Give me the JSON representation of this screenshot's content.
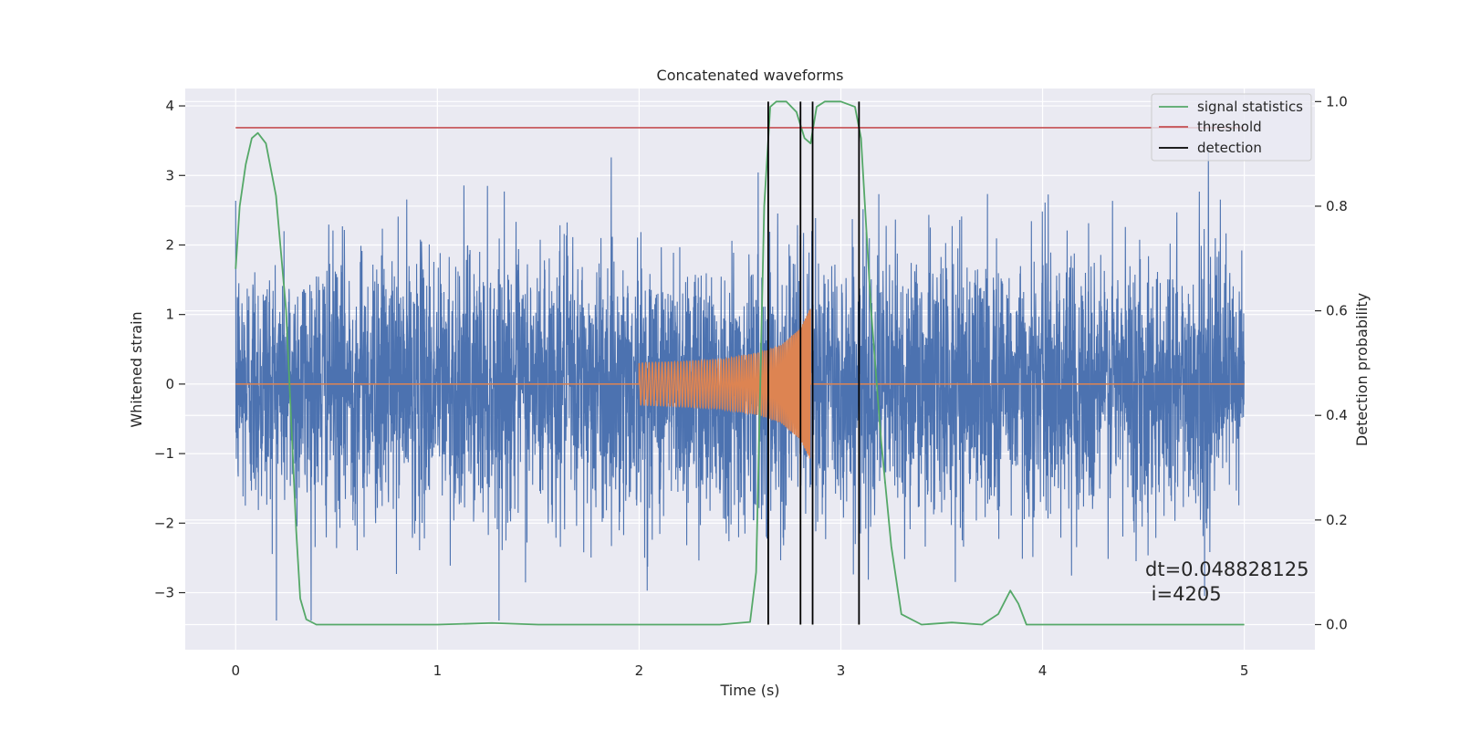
{
  "chart_data": {
    "type": "line",
    "title": "Concatenated waveforms",
    "xlabel": "Time (s)",
    "ylabel": "Whitened strain",
    "y2label": "Detection probability",
    "xlim": [
      -0.25,
      5.35
    ],
    "ylim": [
      -3.82,
      4.25
    ],
    "y2lim": [
      -0.048,
      1.025
    ],
    "x_ticks": [
      0,
      1,
      2,
      3,
      4,
      5
    ],
    "y_ticks": [
      -3,
      -2,
      -1,
      0,
      1,
      2,
      3,
      4
    ],
    "y2_ticks": [
      0.0,
      0.2,
      0.4,
      0.6,
      0.8,
      1.0
    ],
    "y2_tick_labels": [
      "0.0",
      "0.2",
      "0.4",
      "0.6",
      "0.8",
      "1.0"
    ],
    "grid": true,
    "legend_position": "top-right",
    "annotation": [
      "dt=0.048828125",
      " i=4205"
    ],
    "series": [
      {
        "name": "",
        "axis": "left",
        "color": "#4c72b0",
        "description": "whitened strain noise, dense random samples between about -3.4 and 3.8 over 0-5 s",
        "x_range": [
          0,
          5
        ],
        "envelope": [
          3.8,
          -3.4
        ]
      },
      {
        "name": "",
        "axis": "left",
        "color": "#dd8452",
        "description": "injected chirp waveform from 2.0 s to 2.86 s, amplitude growing from about 0.3 to 1.1",
        "x": [
          2.0,
          2.2,
          2.4,
          2.6,
          2.7,
          2.8,
          2.85
        ],
        "amplitude": [
          0.3,
          0.32,
          0.35,
          0.45,
          0.55,
          0.8,
          1.1
        ]
      },
      {
        "name": "signal statistics",
        "axis": "right",
        "color": "#55a868",
        "x": [
          0,
          0.02,
          0.05,
          0.08,
          0.11,
          0.15,
          0.2,
          0.25,
          0.28,
          0.3,
          0.32,
          0.35,
          0.4,
          1.0,
          1.27,
          1.5,
          2.0,
          2.4,
          2.55,
          2.58,
          2.62,
          2.65,
          2.68,
          2.73,
          2.78,
          2.82,
          2.85,
          2.88,
          2.92,
          3.0,
          3.07,
          3.1,
          3.15,
          3.2,
          3.25,
          3.3,
          3.4,
          3.55,
          3.7,
          3.78,
          3.84,
          3.88,
          3.92,
          4.0,
          4.5,
          5.0
        ],
        "values": [
          0.68,
          0.8,
          0.88,
          0.93,
          0.94,
          0.92,
          0.82,
          0.6,
          0.35,
          0.18,
          0.05,
          0.01,
          0.0,
          0.0,
          0.003,
          0.0,
          0.0,
          0.0,
          0.005,
          0.1,
          0.8,
          0.99,
          1.0,
          1.0,
          0.98,
          0.93,
          0.92,
          0.99,
          1.0,
          1.0,
          0.99,
          0.93,
          0.6,
          0.35,
          0.15,
          0.02,
          0.0,
          0.004,
          0.0,
          0.02,
          0.065,
          0.04,
          0.0,
          0.0,
          0.0,
          0.0
        ]
      },
      {
        "name": "threshold",
        "axis": "right",
        "color": "#c44e52",
        "x": [
          0,
          5
        ],
        "values": [
          0.95,
          0.95
        ]
      },
      {
        "name": "detection",
        "axis": "right",
        "color": "#000000",
        "type": "vlines",
        "x": [
          2.64,
          2.8,
          2.86,
          3.09
        ],
        "range": [
          0.0,
          1.0
        ]
      }
    ]
  }
}
